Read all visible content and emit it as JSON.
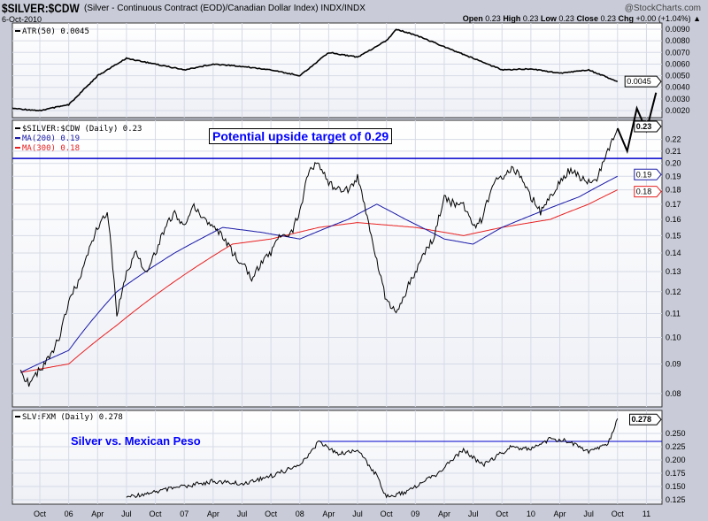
{
  "header": {
    "symbol": "$SILVER:$CDW",
    "description": "(Silver - Continuous Contract (EOD)/Canadian Dollar Index) INDX/INDX",
    "brand": "@StockCharts.com",
    "date": "6-Oct-2010",
    "quote": {
      "open_label": "Open",
      "open": "0.23",
      "high_label": "High",
      "high": "0.23",
      "low_label": "Low",
      "low": "0.23",
      "close_label": "Close",
      "close": "0.23",
      "chg_label": "Chg",
      "chg": "+0.00 (+1.04%)"
    }
  },
  "colors": {
    "price": "#000000",
    "ma200": "#1a1aa8",
    "ma300": "#e82020",
    "resistance": "#0000cc",
    "annotation": "#0000ff"
  },
  "chart_data": [
    {
      "type": "line",
      "panel": "ATR",
      "legend": "ATR(50) 0.0045",
      "ylim": [
        0.0015,
        0.0095
      ],
      "yticks": [
        "0.0090",
        "0.0080",
        "0.0070",
        "0.0060",
        "0.0050",
        "0.0040",
        "0.0030",
        "0.0020"
      ],
      "last_label": "0.0045",
      "x": [
        "2005-07",
        "2005-10",
        "2006-01",
        "2006-04",
        "2006-07",
        "2006-10",
        "2007-01",
        "2007-04",
        "2007-07",
        "2007-10",
        "2008-01",
        "2008-04",
        "2008-07",
        "2008-10",
        "2008-11",
        "2009-01",
        "2009-04",
        "2009-07",
        "2009-10",
        "2010-01",
        "2010-04",
        "2010-07",
        "2010-10"
      ],
      "values": [
        0.0022,
        0.002,
        0.0025,
        0.005,
        0.0065,
        0.006,
        0.0055,
        0.006,
        0.0058,
        0.0055,
        0.005,
        0.007,
        0.0066,
        0.008,
        0.009,
        0.0085,
        0.0075,
        0.0065,
        0.0055,
        0.0056,
        0.0052,
        0.0055,
        0.0045
      ],
      "projection": {
        "x": [
          "2010-10",
          "2010-11",
          "2010-12",
          "2011-01",
          "2011-02"
        ],
        "values": [
          0.23,
          0.21,
          0.249,
          0.228,
          0.265
        ]
      }
    },
    {
      "type": "line",
      "panel": "price",
      "scale": "log",
      "ylim": [
        0.078,
        0.235
      ],
      "yticks": [
        "0.22",
        "0.21",
        "0.20",
        "0.19",
        "0.18",
        "0.17",
        "0.16",
        "0.15",
        "0.14",
        "0.13",
        "0.12",
        "0.11",
        "0.10",
        "0.09",
        "0.08"
      ],
      "last_labels": {
        "price": "0.23",
        "ma200": "0.19",
        "ma300": "0.18"
      },
      "series": [
        {
          "name": "$SILVER:$CDW (Daily) 0.23",
          "x": [
            "2005-08",
            "2005-09",
            "2005-10",
            "2005-11",
            "2005-12",
            "2006-01",
            "2006-02",
            "2006-03",
            "2006-04",
            "2006-05",
            "2006-06",
            "2006-07",
            "2006-08",
            "2006-09",
            "2006-10",
            "2006-11",
            "2006-12",
            "2007-01",
            "2007-02",
            "2007-03",
            "2007-04",
            "2007-05",
            "2007-06",
            "2007-07",
            "2007-08",
            "2007-09",
            "2007-10",
            "2007-11",
            "2007-12",
            "2008-01",
            "2008-02",
            "2008-03",
            "2008-04",
            "2008-05",
            "2008-06",
            "2008-07",
            "2008-08",
            "2008-09",
            "2008-10",
            "2008-11",
            "2008-12",
            "2009-01",
            "2009-02",
            "2009-03",
            "2009-04",
            "2009-05",
            "2009-06",
            "2009-07",
            "2009-08",
            "2009-09",
            "2009-10",
            "2009-11",
            "2009-12",
            "2010-01",
            "2010-02",
            "2010-03",
            "2010-04",
            "2010-05",
            "2010-06",
            "2010-07",
            "2010-08",
            "2010-09",
            "2010-10"
          ],
          "values": [
            0.087,
            0.083,
            0.088,
            0.092,
            0.1,
            0.115,
            0.125,
            0.14,
            0.155,
            0.165,
            0.11,
            0.13,
            0.14,
            0.13,
            0.14,
            0.155,
            0.165,
            0.155,
            0.17,
            0.16,
            0.155,
            0.15,
            0.14,
            0.135,
            0.125,
            0.135,
            0.14,
            0.15,
            0.15,
            0.165,
            0.195,
            0.2,
            0.185,
            0.18,
            0.18,
            0.19,
            0.16,
            0.135,
            0.115,
            0.11,
            0.12,
            0.13,
            0.14,
            0.15,
            0.175,
            0.17,
            0.17,
            0.155,
            0.16,
            0.185,
            0.19,
            0.195,
            0.19,
            0.175,
            0.165,
            0.175,
            0.185,
            0.195,
            0.19,
            0.185,
            0.19,
            0.21,
            0.23
          ]
        },
        {
          "name": "MA(200) 0.19",
          "x": [
            "2005-08",
            "2006-01",
            "2006-06",
            "2006-12",
            "2007-05",
            "2007-09",
            "2008-01",
            "2008-06",
            "2008-09",
            "2008-12",
            "2009-04",
            "2009-07",
            "2009-10",
            "2010-02",
            "2010-06",
            "2010-10"
          ],
          "values": [
            0.087,
            0.095,
            0.12,
            0.14,
            0.155,
            0.152,
            0.148,
            0.16,
            0.17,
            0.16,
            0.148,
            0.145,
            0.155,
            0.165,
            0.175,
            0.19
          ]
        },
        {
          "name": "MA(300) 0.18",
          "x": [
            "2005-08",
            "2006-01",
            "2006-06",
            "2006-12",
            "2007-06",
            "2007-10",
            "2008-03",
            "2008-07",
            "2009-01",
            "2009-06",
            "2009-10",
            "2010-03",
            "2010-07",
            "2010-10"
          ],
          "values": [
            0.087,
            0.09,
            0.105,
            0.125,
            0.145,
            0.148,
            0.155,
            0.158,
            0.155,
            0.15,
            0.155,
            0.16,
            0.17,
            0.18
          ]
        }
      ],
      "resistance": 0.204,
      "projection": {
        "x": [
          "2010-10",
          "2010-11",
          "2010-12",
          "2011-01",
          "2011-02"
        ],
        "values": [
          0.23,
          0.21,
          0.249,
          0.228,
          0.265
        ]
      },
      "annotation": "Potential upside target of 0.29"
    },
    {
      "type": "line",
      "panel": "SLV:FXM",
      "legend": "SLV:FXM (Daily) 0.278",
      "annotation": "Silver vs. Mexican Peso",
      "ylim": [
        0.12,
        0.285
      ],
      "yticks": [
        "0.250",
        "0.225",
        "0.200",
        "0.175",
        "0.150",
        "0.125"
      ],
      "last_label": "0.278",
      "x": [
        "2006-07",
        "2006-10",
        "2007-01",
        "2007-04",
        "2007-07",
        "2007-10",
        "2008-01",
        "2008-03",
        "2008-05",
        "2008-07",
        "2008-09",
        "2008-10",
        "2008-12",
        "2009-03",
        "2009-06",
        "2009-08",
        "2009-11",
        "2010-01",
        "2010-03",
        "2010-05",
        "2010-07",
        "2010-09",
        "2010-10"
      ],
      "values": [
        0.13,
        0.14,
        0.15,
        0.16,
        0.155,
        0.17,
        0.19,
        0.235,
        0.21,
        0.22,
        0.17,
        0.13,
        0.14,
        0.17,
        0.22,
        0.19,
        0.225,
        0.22,
        0.24,
        0.235,
        0.215,
        0.23,
        0.278
      ],
      "resistance": {
        "value": 0.235,
        "from": "2008-03"
      }
    }
  ],
  "xaxis": {
    "ticks": [
      {
        "d": "2005-10",
        "l": "Oct"
      },
      {
        "d": "2006-01",
        "l": "06"
      },
      {
        "d": "2006-04",
        "l": "Apr"
      },
      {
        "d": "2006-07",
        "l": "Jul"
      },
      {
        "d": "2006-10",
        "l": "Oct"
      },
      {
        "d": "2007-01",
        "l": "07"
      },
      {
        "d": "2007-04",
        "l": "Apr"
      },
      {
        "d": "2007-07",
        "l": "Jul"
      },
      {
        "d": "2007-10",
        "l": "Oct"
      },
      {
        "d": "2008-01",
        "l": "08"
      },
      {
        "d": "2008-04",
        "l": "Apr"
      },
      {
        "d": "2008-07",
        "l": "Jul"
      },
      {
        "d": "2008-10",
        "l": "Oct"
      },
      {
        "d": "2009-01",
        "l": "09"
      },
      {
        "d": "2009-04",
        "l": "Apr"
      },
      {
        "d": "2009-07",
        "l": "Jul"
      },
      {
        "d": "2009-10",
        "l": "Oct"
      },
      {
        "d": "2010-01",
        "l": "10"
      },
      {
        "d": "2010-04",
        "l": "Apr"
      },
      {
        "d": "2010-07",
        "l": "Jul"
      },
      {
        "d": "2010-10",
        "l": "Oct"
      },
      {
        "d": "2011-01",
        "l": "11"
      }
    ]
  },
  "legend": {
    "price": "$SILVER:$CDW (Daily) 0.23",
    "ma200": "MA(200) 0.19",
    "ma300": "MA(300) 0.18"
  }
}
